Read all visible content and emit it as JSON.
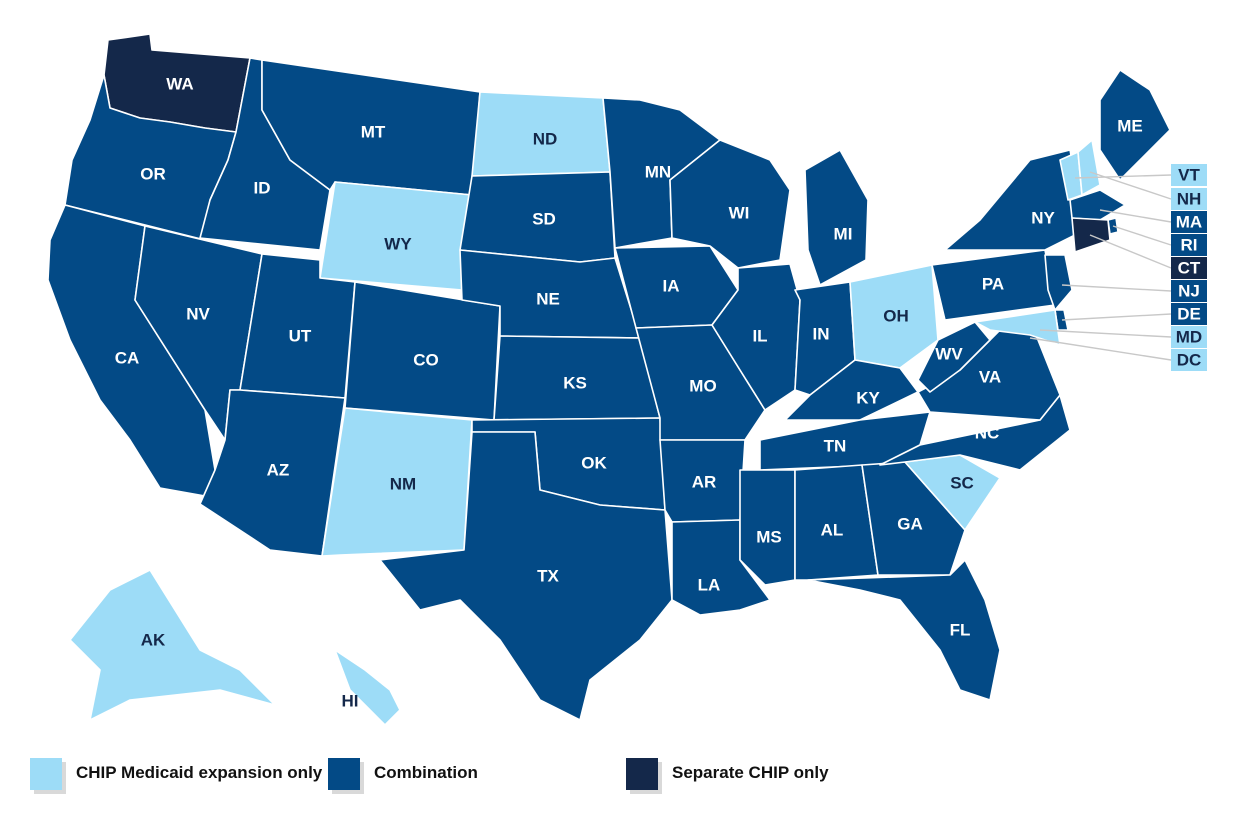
{
  "colors": {
    "expansion": "#9ddcf7",
    "combination": "#034a86",
    "separate": "#14284a",
    "border": "#ffffff",
    "leader": "#c8c8c8"
  },
  "legend": [
    {
      "key": "expansion",
      "label": "CHIP Medicaid expansion only"
    },
    {
      "key": "combination",
      "label": "Combination"
    },
    {
      "key": "separate",
      "label": "Separate CHIP only"
    }
  ],
  "states": [
    {
      "abbr": "WA",
      "category": "separate"
    },
    {
      "abbr": "OR",
      "category": "combination"
    },
    {
      "abbr": "CA",
      "category": "combination"
    },
    {
      "abbr": "ID",
      "category": "combination"
    },
    {
      "abbr": "NV",
      "category": "combination"
    },
    {
      "abbr": "MT",
      "category": "combination"
    },
    {
      "abbr": "WY",
      "category": "expansion"
    },
    {
      "abbr": "UT",
      "category": "combination"
    },
    {
      "abbr": "AZ",
      "category": "combination"
    },
    {
      "abbr": "CO",
      "category": "combination"
    },
    {
      "abbr": "NM",
      "category": "expansion"
    },
    {
      "abbr": "ND",
      "category": "expansion"
    },
    {
      "abbr": "SD",
      "category": "combination"
    },
    {
      "abbr": "NE",
      "category": "combination"
    },
    {
      "abbr": "KS",
      "category": "combination"
    },
    {
      "abbr": "OK",
      "category": "combination"
    },
    {
      "abbr": "TX",
      "category": "combination"
    },
    {
      "abbr": "MN",
      "category": "combination"
    },
    {
      "abbr": "IA",
      "category": "combination"
    },
    {
      "abbr": "MO",
      "category": "combination"
    },
    {
      "abbr": "AR",
      "category": "combination"
    },
    {
      "abbr": "LA",
      "category": "combination"
    },
    {
      "abbr": "WI",
      "category": "combination"
    },
    {
      "abbr": "IL",
      "category": "combination"
    },
    {
      "abbr": "MI",
      "category": "combination"
    },
    {
      "abbr": "IN",
      "category": "combination"
    },
    {
      "abbr": "OH",
      "category": "expansion"
    },
    {
      "abbr": "KY",
      "category": "combination"
    },
    {
      "abbr": "TN",
      "category": "combination"
    },
    {
      "abbr": "MS",
      "category": "combination"
    },
    {
      "abbr": "AL",
      "category": "combination"
    },
    {
      "abbr": "GA",
      "category": "combination"
    },
    {
      "abbr": "FL",
      "category": "combination"
    },
    {
      "abbr": "SC",
      "category": "expansion"
    },
    {
      "abbr": "NC",
      "category": "combination"
    },
    {
      "abbr": "VA",
      "category": "combination"
    },
    {
      "abbr": "WV",
      "category": "combination"
    },
    {
      "abbr": "PA",
      "category": "combination"
    },
    {
      "abbr": "NY",
      "category": "combination"
    },
    {
      "abbr": "ME",
      "category": "combination"
    },
    {
      "abbr": "AK",
      "category": "expansion"
    },
    {
      "abbr": "HI",
      "category": "expansion"
    }
  ],
  "callouts": [
    {
      "abbr": "VT",
      "category": "expansion"
    },
    {
      "abbr": "NH",
      "category": "expansion"
    },
    {
      "abbr": "MA",
      "category": "combination"
    },
    {
      "abbr": "RI",
      "category": "combination"
    },
    {
      "abbr": "CT",
      "category": "separate"
    },
    {
      "abbr": "NJ",
      "category": "combination"
    },
    {
      "abbr": "DE",
      "category": "combination"
    },
    {
      "abbr": "MD",
      "category": "expansion"
    },
    {
      "abbr": "DC",
      "category": "expansion"
    }
  ]
}
